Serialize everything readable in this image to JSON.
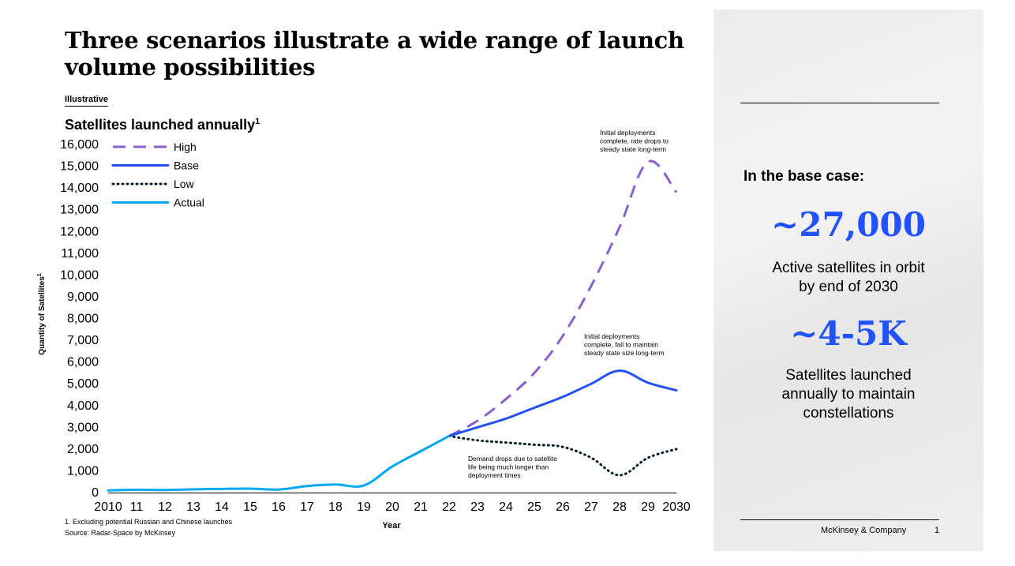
{
  "slide": {
    "title": "Three scenarios illustrate a wide range of launch volume possibilities",
    "tag": "Illustrative",
    "chart_heading": "Satellites launched annually",
    "chart_heading_sup": "1",
    "footnote": "1.   Excluding potential Russian and Chinese launches",
    "source": "Source: Radar-Space by McKinsey"
  },
  "panel": {
    "base_label": "In the base case:",
    "stat1_value": "~27,000",
    "stat1_desc_line1": "Active satellites in orbit",
    "stat1_desc_line2": "by end of 2030",
    "stat2_value": "~4-5K",
    "stat2_desc_line1": "Satellites launched",
    "stat2_desc_line2": "annually to maintain",
    "stat2_desc_line3": "constellations",
    "brand": "McKinsey & Company",
    "page_number": "1"
  },
  "colors": {
    "high": "#8a5fd1",
    "base": "#2251ff",
    "low": "#051c2c",
    "actual": "#00a9f4",
    "accent": "#2251ff"
  },
  "chart_data": {
    "type": "line",
    "title": "Satellites launched annually",
    "xlabel": "Year",
    "ylabel": "Quantity of Satellites",
    "ylabel_sup": "1",
    "ylim": [
      0,
      16000
    ],
    "y_ticks": [
      0,
      1000,
      2000,
      3000,
      4000,
      5000,
      6000,
      7000,
      8000,
      9000,
      10000,
      11000,
      12000,
      13000,
      14000,
      15000,
      16000
    ],
    "y_tick_labels": [
      "0",
      "1,000",
      "2,000",
      "3,000",
      "4,000",
      "5,000",
      "6,000",
      "7,000",
      "8,000",
      "9,000",
      "10,000",
      "11,000",
      "12,000",
      "13,000",
      "14,000",
      "15,000",
      "16,000"
    ],
    "x": [
      2010,
      2011,
      2012,
      2013,
      2014,
      2015,
      2016,
      2017,
      2018,
      2019,
      2020,
      2021,
      2022,
      2023,
      2024,
      2025,
      2026,
      2027,
      2028,
      2029,
      2030
    ],
    "x_tick_labels": [
      "2010",
      "11",
      "12",
      "13",
      "14",
      "15",
      "16",
      "17",
      "18",
      "19",
      "20",
      "21",
      "22",
      "23",
      "24",
      "25",
      "26",
      "27",
      "28",
      "29",
      "2030"
    ],
    "legend": {
      "placement": "top-left"
    },
    "series": [
      {
        "name": "High",
        "style": "dashed",
        "x": [
          2022,
          2023,
          2024,
          2025,
          2026,
          2027,
          2028,
          2029,
          2030
        ],
        "values": [
          2600,
          3300,
          4300,
          5500,
          7200,
          9500,
          12200,
          15200,
          13800
        ]
      },
      {
        "name": "Base",
        "style": "solid",
        "x": [
          2022,
          2023,
          2024,
          2025,
          2026,
          2027,
          2028,
          2029,
          2030
        ],
        "values": [
          2600,
          3000,
          3400,
          3900,
          4400,
          5000,
          5600,
          5050,
          4700
        ]
      },
      {
        "name": "Low",
        "style": "dotted",
        "x": [
          2022,
          2023,
          2024,
          2025,
          2026,
          2027,
          2028,
          2029,
          2030
        ],
        "values": [
          2600,
          2400,
          2300,
          2200,
          2100,
          1600,
          800,
          1600,
          2000
        ]
      },
      {
        "name": "Actual",
        "style": "solid",
        "x": [
          2010,
          2011,
          2012,
          2013,
          2014,
          2015,
          2016,
          2017,
          2018,
          2019,
          2020,
          2021,
          2022
        ],
        "values": [
          100,
          130,
          120,
          150,
          170,
          180,
          140,
          300,
          370,
          330,
          1200,
          1900,
          2600
        ]
      }
    ],
    "annotations": [
      {
        "series": "High",
        "lines": [
          "Initial deployments",
          "complete, rate drops to",
          "steady state  long-term"
        ]
      },
      {
        "series": "Base",
        "lines": [
          "Initial deployments",
          "complete, fall to maintain",
          "steady state size long-term"
        ]
      },
      {
        "series": "Low",
        "lines": [
          "Demand drops due to satellite",
          "life being much longer than",
          "deployment times"
        ]
      }
    ]
  }
}
